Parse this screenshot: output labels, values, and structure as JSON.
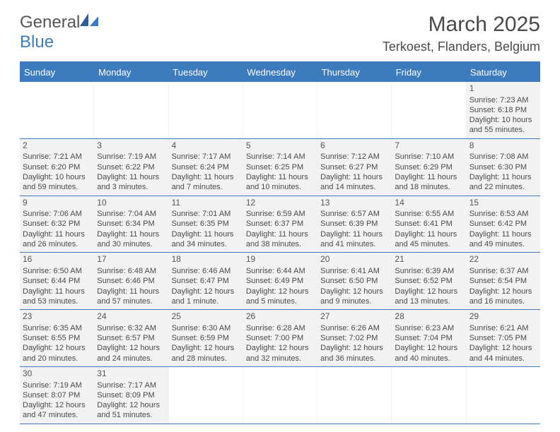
{
  "logo": {
    "textGeneral": "General",
    "textBlue": "Blue"
  },
  "title": "March 2025",
  "location": "Terkoest, Flanders, Belgium",
  "colors": {
    "headerBlue": "#3d7bbf",
    "cellBg": "#f2f2f2",
    "text": "#4a4a4a",
    "white": "#ffffff"
  },
  "weekdays": [
    "Sunday",
    "Monday",
    "Tuesday",
    "Wednesday",
    "Thursday",
    "Friday",
    "Saturday"
  ],
  "weeks": [
    [
      null,
      null,
      null,
      null,
      null,
      null,
      {
        "n": "1",
        "sunrise": "Sunrise: 7:23 AM",
        "sunset": "Sunset: 6:18 PM",
        "day1": "Daylight: 10 hours",
        "day2": "and 55 minutes."
      }
    ],
    [
      {
        "n": "2",
        "sunrise": "Sunrise: 7:21 AM",
        "sunset": "Sunset: 6:20 PM",
        "day1": "Daylight: 10 hours",
        "day2": "and 59 minutes."
      },
      {
        "n": "3",
        "sunrise": "Sunrise: 7:19 AM",
        "sunset": "Sunset: 6:22 PM",
        "day1": "Daylight: 11 hours",
        "day2": "and 3 minutes."
      },
      {
        "n": "4",
        "sunrise": "Sunrise: 7:17 AM",
        "sunset": "Sunset: 6:24 PM",
        "day1": "Daylight: 11 hours",
        "day2": "and 7 minutes."
      },
      {
        "n": "5",
        "sunrise": "Sunrise: 7:14 AM",
        "sunset": "Sunset: 6:25 PM",
        "day1": "Daylight: 11 hours",
        "day2": "and 10 minutes."
      },
      {
        "n": "6",
        "sunrise": "Sunrise: 7:12 AM",
        "sunset": "Sunset: 6:27 PM",
        "day1": "Daylight: 11 hours",
        "day2": "and 14 minutes."
      },
      {
        "n": "7",
        "sunrise": "Sunrise: 7:10 AM",
        "sunset": "Sunset: 6:29 PM",
        "day1": "Daylight: 11 hours",
        "day2": "and 18 minutes."
      },
      {
        "n": "8",
        "sunrise": "Sunrise: 7:08 AM",
        "sunset": "Sunset: 6:30 PM",
        "day1": "Daylight: 11 hours",
        "day2": "and 22 minutes."
      }
    ],
    [
      {
        "n": "9",
        "sunrise": "Sunrise: 7:06 AM",
        "sunset": "Sunset: 6:32 PM",
        "day1": "Daylight: 11 hours",
        "day2": "and 26 minutes."
      },
      {
        "n": "10",
        "sunrise": "Sunrise: 7:04 AM",
        "sunset": "Sunset: 6:34 PM",
        "day1": "Daylight: 11 hours",
        "day2": "and 30 minutes."
      },
      {
        "n": "11",
        "sunrise": "Sunrise: 7:01 AM",
        "sunset": "Sunset: 6:35 PM",
        "day1": "Daylight: 11 hours",
        "day2": "and 34 minutes."
      },
      {
        "n": "12",
        "sunrise": "Sunrise: 6:59 AM",
        "sunset": "Sunset: 6:37 PM",
        "day1": "Daylight: 11 hours",
        "day2": "and 38 minutes."
      },
      {
        "n": "13",
        "sunrise": "Sunrise: 6:57 AM",
        "sunset": "Sunset: 6:39 PM",
        "day1": "Daylight: 11 hours",
        "day2": "and 41 minutes."
      },
      {
        "n": "14",
        "sunrise": "Sunrise: 6:55 AM",
        "sunset": "Sunset: 6:41 PM",
        "day1": "Daylight: 11 hours",
        "day2": "and 45 minutes."
      },
      {
        "n": "15",
        "sunrise": "Sunrise: 6:53 AM",
        "sunset": "Sunset: 6:42 PM",
        "day1": "Daylight: 11 hours",
        "day2": "and 49 minutes."
      }
    ],
    [
      {
        "n": "16",
        "sunrise": "Sunrise: 6:50 AM",
        "sunset": "Sunset: 6:44 PM",
        "day1": "Daylight: 11 hours",
        "day2": "and 53 minutes."
      },
      {
        "n": "17",
        "sunrise": "Sunrise: 6:48 AM",
        "sunset": "Sunset: 6:46 PM",
        "day1": "Daylight: 11 hours",
        "day2": "and 57 minutes."
      },
      {
        "n": "18",
        "sunrise": "Sunrise: 6:46 AM",
        "sunset": "Sunset: 6:47 PM",
        "day1": "Daylight: 12 hours",
        "day2": "and 1 minute."
      },
      {
        "n": "19",
        "sunrise": "Sunrise: 6:44 AM",
        "sunset": "Sunset: 6:49 PM",
        "day1": "Daylight: 12 hours",
        "day2": "and 5 minutes."
      },
      {
        "n": "20",
        "sunrise": "Sunrise: 6:41 AM",
        "sunset": "Sunset: 6:50 PM",
        "day1": "Daylight: 12 hours",
        "day2": "and 9 minutes."
      },
      {
        "n": "21",
        "sunrise": "Sunrise: 6:39 AM",
        "sunset": "Sunset: 6:52 PM",
        "day1": "Daylight: 12 hours",
        "day2": "and 13 minutes."
      },
      {
        "n": "22",
        "sunrise": "Sunrise: 6:37 AM",
        "sunset": "Sunset: 6:54 PM",
        "day1": "Daylight: 12 hours",
        "day2": "and 16 minutes."
      }
    ],
    [
      {
        "n": "23",
        "sunrise": "Sunrise: 6:35 AM",
        "sunset": "Sunset: 6:55 PM",
        "day1": "Daylight: 12 hours",
        "day2": "and 20 minutes."
      },
      {
        "n": "24",
        "sunrise": "Sunrise: 6:32 AM",
        "sunset": "Sunset: 6:57 PM",
        "day1": "Daylight: 12 hours",
        "day2": "and 24 minutes."
      },
      {
        "n": "25",
        "sunrise": "Sunrise: 6:30 AM",
        "sunset": "Sunset: 6:59 PM",
        "day1": "Daylight: 12 hours",
        "day2": "and 28 minutes."
      },
      {
        "n": "26",
        "sunrise": "Sunrise: 6:28 AM",
        "sunset": "Sunset: 7:00 PM",
        "day1": "Daylight: 12 hours",
        "day2": "and 32 minutes."
      },
      {
        "n": "27",
        "sunrise": "Sunrise: 6:26 AM",
        "sunset": "Sunset: 7:02 PM",
        "day1": "Daylight: 12 hours",
        "day2": "and 36 minutes."
      },
      {
        "n": "28",
        "sunrise": "Sunrise: 6:23 AM",
        "sunset": "Sunset: 7:04 PM",
        "day1": "Daylight: 12 hours",
        "day2": "and 40 minutes."
      },
      {
        "n": "29",
        "sunrise": "Sunrise: 6:21 AM",
        "sunset": "Sunset: 7:05 PM",
        "day1": "Daylight: 12 hours",
        "day2": "and 44 minutes."
      }
    ],
    [
      {
        "n": "30",
        "sunrise": "Sunrise: 7:19 AM",
        "sunset": "Sunset: 8:07 PM",
        "day1": "Daylight: 12 hours",
        "day2": "and 47 minutes."
      },
      {
        "n": "31",
        "sunrise": "Sunrise: 7:17 AM",
        "sunset": "Sunset: 8:09 PM",
        "day1": "Daylight: 12 hours",
        "day2": "and 51 minutes."
      },
      null,
      null,
      null,
      null,
      null
    ]
  ]
}
